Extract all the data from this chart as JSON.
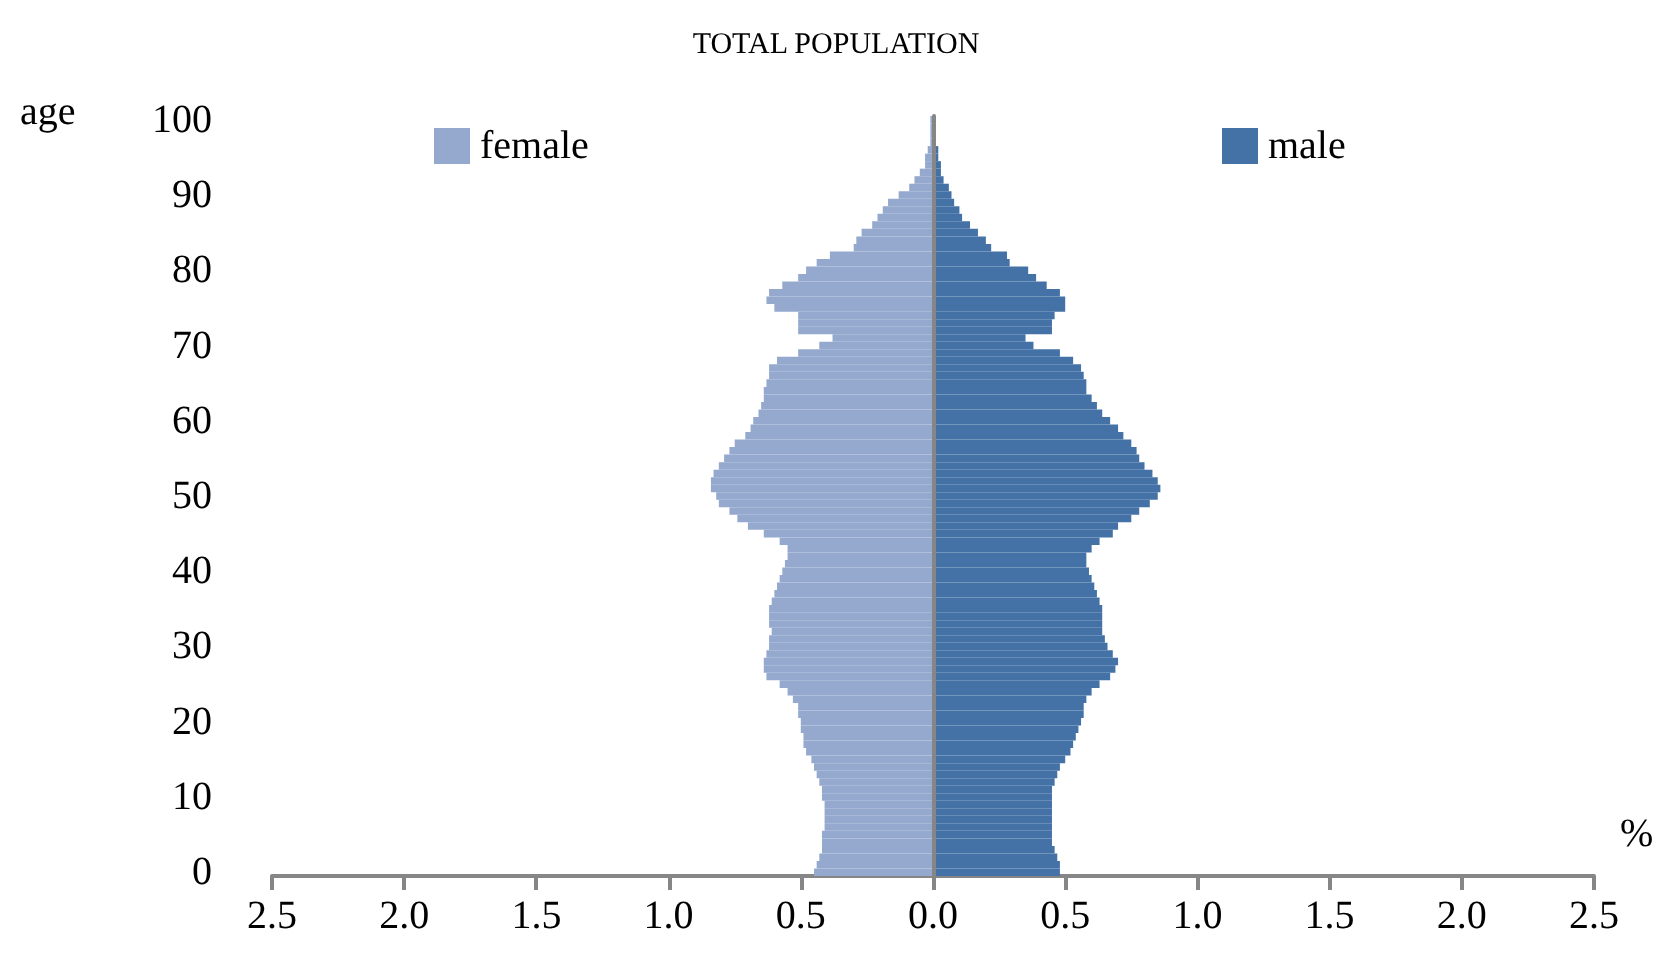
{
  "chart_data": {
    "type": "bar",
    "orientation": "horizontal",
    "title": "TOTAL POPULATION",
    "xlabel": "%",
    "ylabel": "age",
    "categories": [
      "100",
      null,
      null,
      null,
      null,
      null,
      null,
      null,
      null,
      null,
      "90",
      null,
      null,
      null,
      null,
      null,
      null,
      null,
      null,
      null,
      "80",
      null,
      null,
      null,
      null,
      null,
      null,
      null,
      null,
      null,
      "70",
      null,
      null,
      null,
      null,
      null,
      null,
      null,
      null,
      null,
      "60",
      null,
      null,
      null,
      null,
      null,
      null,
      null,
      null,
      null,
      "50",
      null,
      null,
      null,
      null,
      null,
      null,
      null,
      null,
      null,
      "40",
      null,
      null,
      null,
      null,
      null,
      null,
      null,
      null,
      null,
      "30",
      null,
      null,
      null,
      null,
      null,
      null,
      null,
      null,
      null,
      "20",
      null,
      null,
      null,
      null,
      null,
      null,
      null,
      null,
      null,
      "10",
      null,
      null,
      null,
      null,
      null,
      null,
      null,
      null,
      null,
      "0"
    ],
    "series": [
      {
        "name": "female",
        "color": "#95a9cf",
        "values": [
          -0.01,
          -0.01,
          -0.01,
          -0.01,
          -0.02,
          -0.03,
          -0.03,
          -0.05,
          -0.07,
          -0.09,
          -0.13,
          -0.17,
          -0.19,
          -0.21,
          -0.23,
          -0.27,
          -0.29,
          -0.3,
          -0.39,
          -0.44,
          -0.48,
          -0.51,
          -0.57,
          -0.62,
          -0.63,
          -0.6,
          -0.51,
          -0.51,
          -0.51,
          -0.38,
          -0.43,
          -0.51,
          -0.59,
          -0.62,
          -0.62,
          -0.63,
          -0.64,
          -0.64,
          -0.65,
          -0.66,
          -0.68,
          -0.69,
          -0.71,
          -0.75,
          -0.77,
          -0.79,
          -0.81,
          -0.83,
          -0.84,
          -0.84,
          -0.82,
          -0.81,
          -0.77,
          -0.74,
          -0.7,
          -0.64,
          -0.58,
          -0.55,
          -0.55,
          -0.56,
          -0.57,
          -0.58,
          -0.59,
          -0.6,
          -0.61,
          -0.62,
          -0.62,
          -0.62,
          -0.61,
          -0.62,
          -0.62,
          -0.63,
          -0.64,
          -0.64,
          -0.63,
          -0.58,
          -0.55,
          -0.53,
          -0.51,
          -0.51,
          -0.5,
          -0.5,
          -0.49,
          -0.49,
          -0.48,
          -0.46,
          -0.45,
          -0.44,
          -0.43,
          -0.42,
          -0.42,
          -0.41,
          -0.41,
          -0.41,
          -0.41,
          -0.42,
          -0.42,
          -0.42,
          -0.43,
          -0.44,
          -0.45
        ]
      },
      {
        "name": "male",
        "color": "#4472a6",
        "values": [
          0.01,
          0.01,
          0.01,
          0.01,
          0.02,
          0.02,
          0.03,
          0.03,
          0.04,
          0.06,
          0.07,
          0.08,
          0.1,
          0.11,
          0.14,
          0.17,
          0.2,
          0.22,
          0.28,
          0.29,
          0.36,
          0.39,
          0.43,
          0.48,
          0.5,
          0.5,
          0.46,
          0.45,
          0.45,
          0.35,
          0.38,
          0.48,
          0.53,
          0.56,
          0.57,
          0.58,
          0.58,
          0.6,
          0.62,
          0.64,
          0.67,
          0.7,
          0.72,
          0.75,
          0.77,
          0.78,
          0.8,
          0.83,
          0.85,
          0.86,
          0.85,
          0.82,
          0.78,
          0.75,
          0.7,
          0.68,
          0.63,
          0.6,
          0.58,
          0.58,
          0.59,
          0.6,
          0.61,
          0.62,
          0.63,
          0.64,
          0.64,
          0.64,
          0.64,
          0.65,
          0.66,
          0.68,
          0.7,
          0.69,
          0.67,
          0.63,
          0.6,
          0.58,
          0.57,
          0.57,
          0.56,
          0.55,
          0.54,
          0.53,
          0.52,
          0.5,
          0.48,
          0.47,
          0.46,
          0.45,
          0.45,
          0.45,
          0.45,
          0.45,
          0.45,
          0.45,
          0.45,
          0.46,
          0.47,
          0.48,
          0.48
        ]
      }
    ],
    "xlim": [
      -2.5,
      2.5
    ],
    "xticks": [
      {
        "value": -2.5,
        "label": "2.5"
      },
      {
        "value": -2,
        "label": "2.0"
      },
      {
        "value": -1.5,
        "label": "1.5"
      },
      {
        "value": -1,
        "label": "1.0"
      },
      {
        "value": -0.5,
        "label": "0.5"
      },
      {
        "value": 0,
        "label": "0.0"
      },
      {
        "value": 0.5,
        "label": "0.5"
      },
      {
        "value": 1,
        "label": "1.0"
      },
      {
        "value": 1.5,
        "label": "1.5"
      },
      {
        "value": 2,
        "label": "2.0"
      },
      {
        "value": 2.5,
        "label": "2.5"
      }
    ],
    "legend": "top",
    "stacked": true
  }
}
